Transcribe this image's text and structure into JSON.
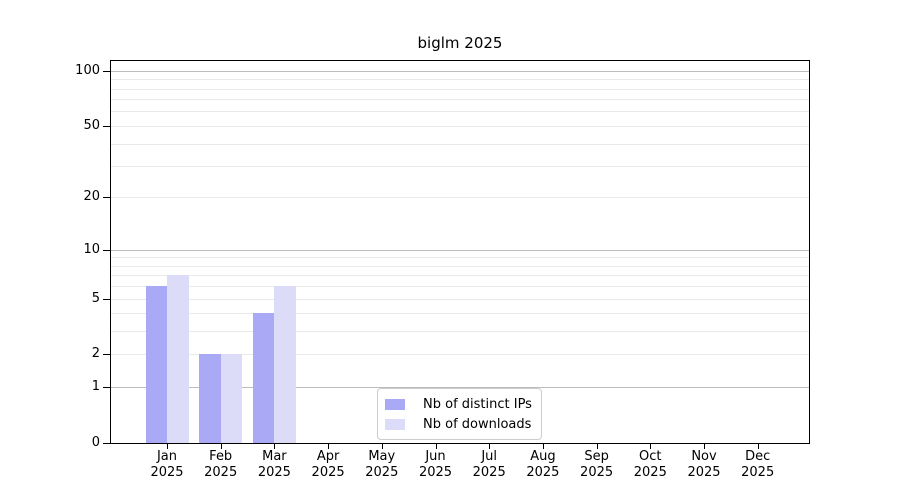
{
  "chart_data": {
    "type": "bar",
    "title": "biglm 2025",
    "categories": [
      "Jan",
      "Feb",
      "Mar",
      "Apr",
      "May",
      "Jun",
      "Jul",
      "Aug",
      "Sep",
      "Oct",
      "Nov",
      "Dec"
    ],
    "category_year": "2025",
    "series": [
      {
        "name": "Nb of distinct IPs",
        "color": "#a9a9f6",
        "values": [
          6,
          2,
          4,
          0,
          0,
          0,
          0,
          0,
          0,
          0,
          0,
          0
        ]
      },
      {
        "name": "Nb of downloads",
        "color": "#dcdcf9",
        "values": [
          7,
          2,
          6,
          0,
          0,
          0,
          0,
          0,
          0,
          0,
          0,
          0
        ]
      }
    ],
    "y_axis": {
      "scale": "log1p",
      "tick_values": [
        0,
        1,
        2,
        5,
        10,
        20,
        50,
        100
      ],
      "tick_labels": [
        "0",
        "1",
        "2",
        "5",
        "10",
        "20",
        "50",
        "100"
      ],
      "range_top": 113
    },
    "grid": {
      "decade_lines": [
        1,
        10,
        100
      ],
      "minor_lines": [
        2,
        3,
        4,
        5,
        6,
        7,
        8,
        9,
        20,
        30,
        40,
        50,
        60,
        70,
        80,
        90
      ],
      "decade_color": "#bcbcbc",
      "minor_color": "#eaeaea"
    },
    "legend": {
      "position": "inside-bottom-center"
    },
    "colors": {
      "frame": "#000000",
      "text": "#000000",
      "legend_border": "#cccccc",
      "background": "#ffffff"
    },
    "xlabel": "",
    "ylabel": ""
  }
}
